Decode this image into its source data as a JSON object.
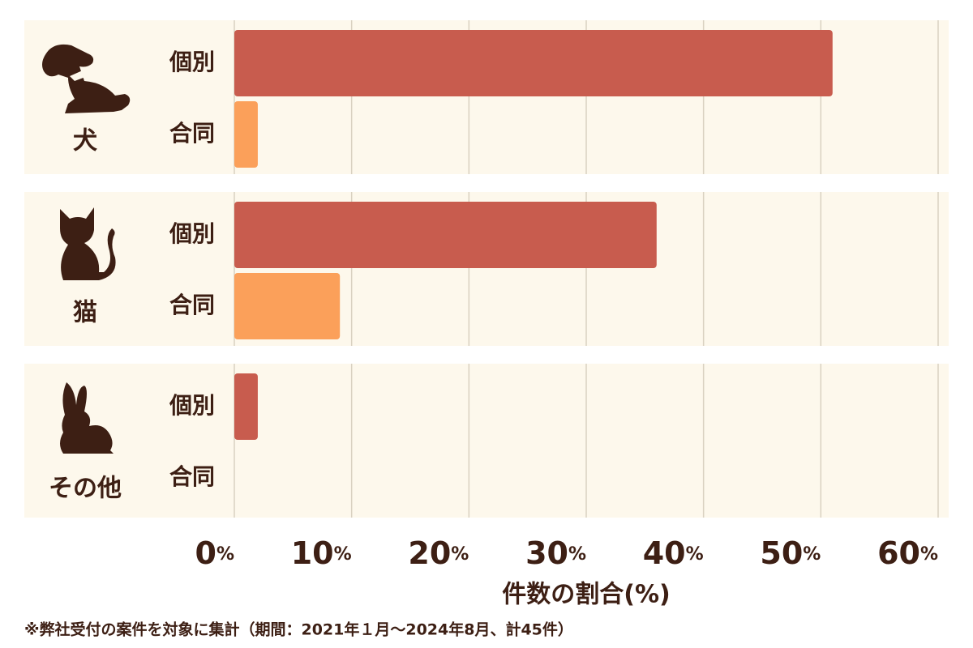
{
  "chart_data": {
    "type": "grouped-hbar",
    "categories": [
      "犬",
      "猫",
      "その他"
    ],
    "series": [
      {
        "name": "個別",
        "color": "#c85c4e",
        "values": [
          51,
          36,
          2
        ]
      },
      {
        "name": "合同",
        "color": "#fba05a",
        "values": [
          2,
          9,
          0
        ]
      }
    ],
    "xlim": [
      0,
      60
    ],
    "xticks": [
      {
        "value": 0,
        "label": "0%"
      },
      {
        "value": 10,
        "label": "10%"
      },
      {
        "value": 20,
        "label": "20%"
      },
      {
        "value": 30,
        "label": "30%"
      },
      {
        "value": 40,
        "label": "40%"
      },
      {
        "value": 50,
        "label": "50%"
      },
      {
        "value": 60,
        "label": "60%"
      }
    ],
    "grid": true,
    "xlabel": "件数の割合(%)",
    "note": "※弊社受付の案件を対象に集計（期間：2021年１月〜2024年8月、計45件）"
  }
}
